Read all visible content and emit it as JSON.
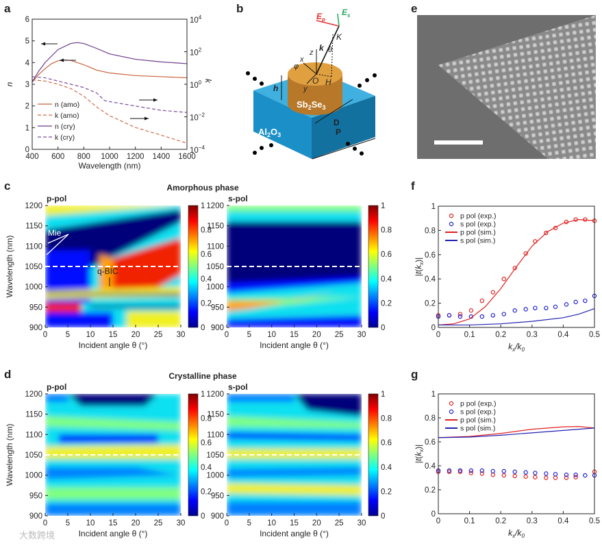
{
  "panels": {
    "a": "a",
    "b": "b",
    "c": "c",
    "d": "d",
    "e": "e",
    "f": "f",
    "g": "g"
  },
  "watermark": "大数跨境",
  "diagram_b": {
    "substrate": "Al2O3",
    "pillar": "Sb2Se3",
    "labels": {
      "Ep": "E",
      "Ep_sub": "p",
      "Es": "E",
      "Es_sub": "s",
      "K": "K",
      "k": "k",
      "theta": "θ",
      "z": "z",
      "x": "x",
      "y": "y",
      "phi": "φ",
      "O": "O",
      "H": "H",
      "h": "h",
      "D": "D",
      "P": "P"
    },
    "colors": {
      "substrate": "#1b8fc7",
      "pillar": "#d4922f",
      "Ep": "#e53030",
      "Es": "#2aa860"
    }
  },
  "sem_e": {
    "description_scale_bar": "white scale bar"
  },
  "chart_data": [
    {
      "id": "a",
      "type": "line",
      "xlabel": "Wavelength (nm)",
      "ylabel": "n",
      "y2label": "k",
      "xlim": [
        400,
        1600
      ],
      "ylim": [
        0,
        6
      ],
      "y2lim_log10": [
        -4,
        4
      ],
      "xticks": [
        400,
        600,
        800,
        1000,
        1200,
        1400,
        1600
      ],
      "yticks": [
        0,
        1,
        2,
        3,
        4,
        5,
        6
      ],
      "y2ticks": [
        {
          "base": "10",
          "exp": "4"
        },
        {
          "base": "10",
          "exp": "2"
        },
        {
          "base": "10",
          "exp": "0"
        },
        {
          "base": "10",
          "exp": "−2"
        },
        {
          "base": "10",
          "exp": "−4"
        }
      ],
      "legend_position": "bottom-left",
      "series": [
        {
          "name": "n (amo)",
          "axis": "left",
          "style": "solid",
          "color": "#c8603a",
          "x": [
            400,
            450,
            500,
            550,
            600,
            650,
            700,
            800,
            900,
            1000,
            1200,
            1400,
            1600
          ],
          "y": [
            3.1,
            3.45,
            3.72,
            3.95,
            4.08,
            4.12,
            4.1,
            3.9,
            3.65,
            3.52,
            3.4,
            3.35,
            3.3
          ]
        },
        {
          "name": "k (amo)",
          "axis": "right",
          "style": "dashed",
          "color": "#d06a48",
          "x": [
            400,
            500,
            600,
            700,
            800,
            900,
            1000,
            1200,
            1400,
            1600
          ],
          "y": [
            1.85,
            1.58,
            1.0,
            0.54,
            0.185,
            0.04,
            0.0117,
            0.0022,
            0.00074,
            0.00024
          ]
        },
        {
          "name": "n (cry)",
          "axis": "left",
          "style": "solid",
          "color": "#6a3a8a",
          "x": [
            400,
            450,
            500,
            600,
            700,
            750,
            800,
            900,
            1000,
            1200,
            1400,
            1600
          ],
          "y": [
            3.1,
            3.6,
            4.0,
            4.6,
            4.88,
            4.92,
            4.88,
            4.65,
            4.4,
            4.15,
            4.03,
            3.95
          ]
        },
        {
          "name": "k (cry)",
          "axis": "right",
          "style": "dashed",
          "color": "#7a4a9a",
          "x": [
            400,
            500,
            600,
            700,
            800,
            900,
            960,
            1000,
            1200,
            1400,
            1600
          ],
          "y": [
            2.9,
            2.5,
            1.58,
            1.0,
            0.63,
            0.29,
            0.1,
            0.086,
            0.046,
            0.025,
            0.0185
          ]
        }
      ],
      "annotations": [
        "arrow-left n(cry)",
        "arrow-left n(amo)",
        "arrow-right k(cry)",
        "arrow-right k(amo)"
      ]
    },
    {
      "id": "c",
      "type": "heatmap",
      "title": "Amorphous phase",
      "subplots": [
        {
          "name": "p-pol",
          "annotations": [
            "Mie",
            "q-BIC"
          ]
        },
        {
          "name": "s-pol"
        }
      ],
      "xlabel": "Incident angle θ (°)",
      "ylabel": "Wavelength (nm)",
      "xlim": [
        0,
        30
      ],
      "ylim": [
        900,
        1200
      ],
      "xticks": [
        0,
        5,
        10,
        15,
        20,
        25,
        30
      ],
      "yticks": [
        900,
        950,
        1000,
        1050,
        1100,
        1150,
        1200
      ],
      "colorbar": {
        "range": [
          0,
          1
        ],
        "ticks": [
          "1",
          "0.8",
          "0.6",
          "0.4",
          "0.2",
          "0"
        ],
        "colormap": "jet"
      },
      "dashed_line_wavelength": 1050
    },
    {
      "id": "d",
      "type": "heatmap",
      "title": "Crystalline phase",
      "subplots": [
        {
          "name": "p-pol"
        },
        {
          "name": "s-pol"
        }
      ],
      "xlabel": "Incident angle θ (°)",
      "ylabel": "Wavelength (nm)",
      "xlim": [
        0,
        30
      ],
      "ylim": [
        900,
        1200
      ],
      "xticks": [
        0,
        5,
        10,
        15,
        20,
        25,
        30
      ],
      "yticks": [
        900,
        950,
        1000,
        1050,
        1100,
        1150,
        1200
      ],
      "colorbar": {
        "range": [
          0,
          1
        ],
        "ticks": [
          "1",
          "0.8",
          "0.6",
          "0.4",
          "0.2",
          "0"
        ],
        "colormap": "jet"
      },
      "dashed_line_wavelength": 1050
    },
    {
      "id": "f",
      "type": "scatter",
      "xlabel": "kx/k0",
      "ylabel": "|t(kx)|",
      "xlim": [
        0,
        0.5
      ],
      "ylim": [
        0,
        1
      ],
      "xticks": [
        0,
        0.1,
        0.2,
        0.3,
        0.4,
        0.5
      ],
      "yticks": [
        0,
        0.2,
        0.4,
        0.6,
        0.8,
        1
      ],
      "xticklabels": [
        "0",
        "0.1",
        "0.2",
        "0.3",
        "0.4",
        "0.5"
      ],
      "yticklabels": [
        "0",
        "0.2",
        "0.4",
        "0.6",
        "0.8",
        "1"
      ],
      "legend_position": "top-left",
      "series": [
        {
          "name": "p pol (exp.)",
          "kind": "points",
          "color": "#e02020",
          "x": [
            0,
            0.035,
            0.07,
            0.105,
            0.14,
            0.175,
            0.21,
            0.245,
            0.28,
            0.31,
            0.345,
            0.375,
            0.41,
            0.44,
            0.47,
            0.5
          ],
          "y": [
            0.1,
            0.1,
            0.11,
            0.14,
            0.22,
            0.29,
            0.4,
            0.49,
            0.61,
            0.71,
            0.78,
            0.82,
            0.87,
            0.89,
            0.89,
            0.88
          ]
        },
        {
          "name": "s pol (exp.)",
          "kind": "points",
          "color": "#2020d0",
          "x": [
            0,
            0.035,
            0.07,
            0.105,
            0.14,
            0.175,
            0.21,
            0.245,
            0.28,
            0.31,
            0.345,
            0.375,
            0.41,
            0.44,
            0.47,
            0.5
          ],
          "y": [
            0.09,
            0.1,
            0.09,
            0.09,
            0.09,
            0.1,
            0.11,
            0.14,
            0.15,
            0.16,
            0.16,
            0.17,
            0.19,
            0.21,
            0.22,
            0.26
          ]
        },
        {
          "name": "p pol (sim.)",
          "kind": "line",
          "color": "#e02020",
          "x": [
            0,
            0.05,
            0.1,
            0.15,
            0.2,
            0.25,
            0.3,
            0.35,
            0.4,
            0.45,
            0.5
          ],
          "y": [
            0.02,
            0.03,
            0.07,
            0.17,
            0.32,
            0.5,
            0.67,
            0.79,
            0.86,
            0.89,
            0.88
          ]
        },
        {
          "name": "s pol (sim.)",
          "kind": "line",
          "color": "#2020b0",
          "x": [
            0,
            0.1,
            0.2,
            0.3,
            0.4,
            0.45,
            0.5
          ],
          "y": [
            0.02,
            0.02,
            0.03,
            0.05,
            0.08,
            0.11,
            0.155
          ]
        }
      ]
    },
    {
      "id": "g",
      "type": "scatter",
      "xlabel": "kx/k0",
      "ylabel": "|t(kx)|",
      "xlim": [
        0,
        0.5
      ],
      "ylim": [
        0,
        1
      ],
      "xticks": [
        0,
        0.1,
        0.2,
        0.3,
        0.4,
        0.5
      ],
      "yticks": [
        0,
        0.2,
        0.4,
        0.6,
        0.8,
        1
      ],
      "xticklabels": [
        "0",
        "0.1",
        "0.2",
        "0.3",
        "0.4",
        "0.5"
      ],
      "yticklabels": [
        "0",
        "0.2",
        "0.4",
        "0.6",
        "0.8",
        "1"
      ],
      "legend_position": "top-left",
      "series": [
        {
          "name": "p pol (exp.)",
          "kind": "points",
          "color": "#e02020",
          "x": [
            0,
            0.035,
            0.07,
            0.105,
            0.14,
            0.175,
            0.21,
            0.245,
            0.28,
            0.31,
            0.345,
            0.375,
            0.41,
            0.44,
            0.5
          ],
          "y": [
            0.35,
            0.35,
            0.35,
            0.34,
            0.335,
            0.325,
            0.32,
            0.315,
            0.31,
            0.305,
            0.3,
            0.3,
            0.3,
            0.305,
            0.35
          ]
        },
        {
          "name": "s pol (exp.)",
          "kind": "points",
          "color": "#2020d0",
          "x": [
            0,
            0.035,
            0.07,
            0.105,
            0.14,
            0.175,
            0.21,
            0.245,
            0.28,
            0.31,
            0.345,
            0.375,
            0.41,
            0.44,
            0.47,
            0.5
          ],
          "y": [
            0.36,
            0.36,
            0.36,
            0.36,
            0.36,
            0.355,
            0.355,
            0.35,
            0.345,
            0.34,
            0.335,
            0.33,
            0.325,
            0.325,
            0.32,
            0.32
          ]
        },
        {
          "name": "p pol (sim.)",
          "kind": "line",
          "color": "#e02020",
          "x": [
            0,
            0.1,
            0.2,
            0.3,
            0.4,
            0.45,
            0.5
          ],
          "y": [
            0.635,
            0.645,
            0.67,
            0.705,
            0.725,
            0.728,
            0.715
          ]
        },
        {
          "name": "s pol (sim.)",
          "kind": "line",
          "color": "#2020b0",
          "x": [
            0,
            0.1,
            0.2,
            0.3,
            0.4,
            0.5
          ],
          "y": [
            0.635,
            0.64,
            0.655,
            0.675,
            0.695,
            0.715
          ]
        }
      ]
    }
  ]
}
